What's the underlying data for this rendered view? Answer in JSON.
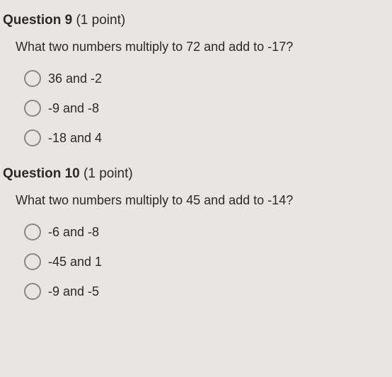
{
  "questions": [
    {
      "number": "Question 9",
      "points": "(1 point)",
      "prompt": "What two numbers multiply to 72 and add to -17?",
      "options": [
        "36 and -2",
        "-9 and -8",
        "-18 and 4"
      ]
    },
    {
      "number": "Question 10",
      "points": "(1 point)",
      "prompt": "What two numbers multiply to 45 and add to -14?",
      "options": [
        "-6 and -8",
        "-45 and 1",
        "-9 and -5"
      ]
    }
  ],
  "colors": {
    "background": "#e8e6e3",
    "text": "#2a2a2a",
    "radio_border": "#888"
  },
  "typography": {
    "font_family": "Arial",
    "header_fontsize": 19,
    "prompt_fontsize": 18,
    "option_fontsize": 18
  }
}
